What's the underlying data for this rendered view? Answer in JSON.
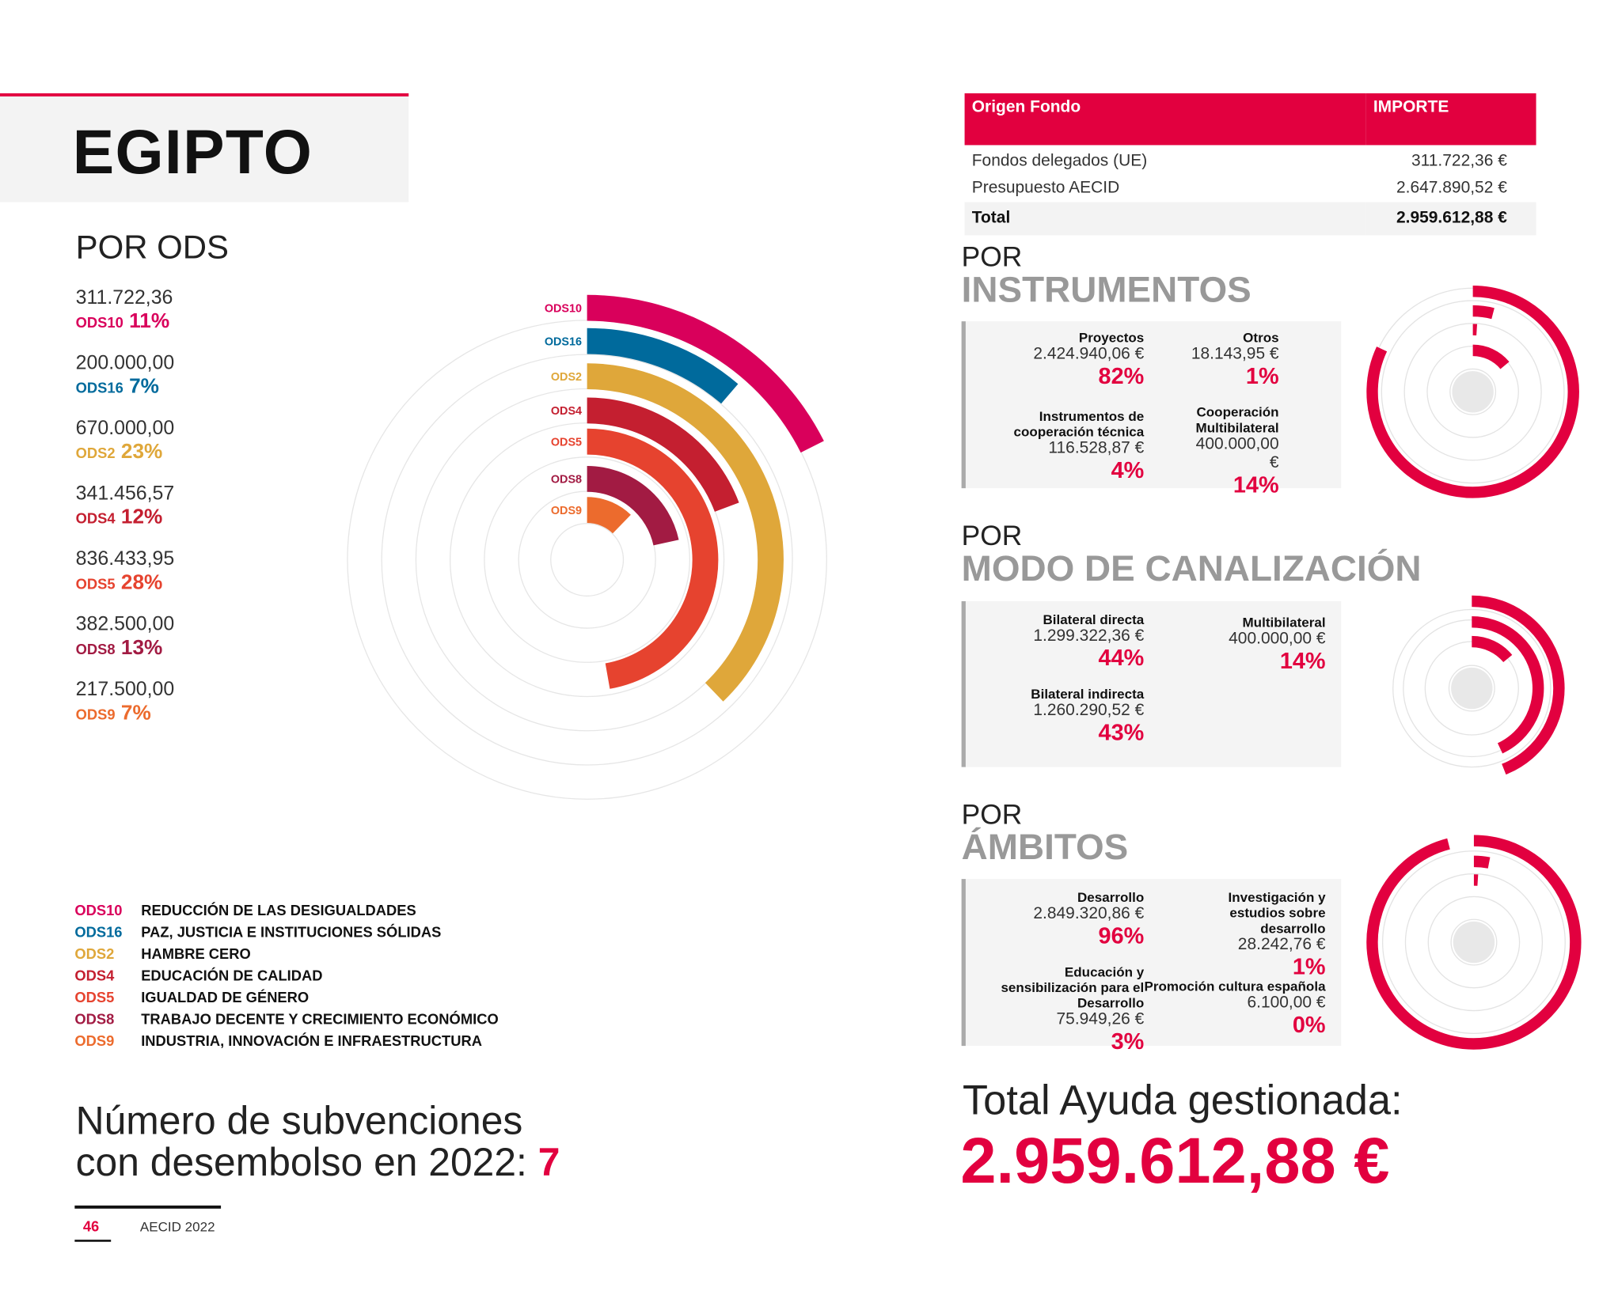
{
  "title": "EGIPTO",
  "por_ods": {
    "heading": "POR ODS",
    "items": [
      {
        "value": "311.722,36",
        "code": "ODS10",
        "pct": "11%",
        "amount": 311722.36,
        "color": "#d9005b"
      },
      {
        "value": "200.000,00",
        "code": "ODS16",
        "pct": "7%",
        "amount": 200000,
        "color": "#006a9c"
      },
      {
        "value": "670.000,00",
        "code": "ODS2",
        "pct": "23%",
        "amount": 670000,
        "color": "#dfa73a"
      },
      {
        "value": "341.456,57",
        "code": "ODS4",
        "pct": "12%",
        "amount": 341456.57,
        "color": "#c41f30"
      },
      {
        "value": "836.433,95",
        "code": "ODS5",
        "pct": "28%",
        "amount": 836433.95,
        "color": "#e6432f"
      },
      {
        "value": "382.500,00",
        "code": "ODS8",
        "pct": "13%",
        "amount": 382500,
        "color": "#a21b43"
      },
      {
        "value": "217.500,00",
        "code": "ODS9",
        "pct": "7%",
        "amount": 217500,
        "color": "#ec6b2d"
      }
    ]
  },
  "legend": [
    {
      "code": "ODS10",
      "desc": "REDUCCIÓN DE LAS DESIGUALDADES"
    },
    {
      "code": "ODS16",
      "desc": "PAZ, JUSTICIA E INSTITUCIONES SÓLIDAS"
    },
    {
      "code": "ODS2",
      "desc": "HAMBRE CERO"
    },
    {
      "code": "ODS4",
      "desc": "EDUCACIÓN DE CALIDAD"
    },
    {
      "code": "ODS5",
      "desc": "IGUALDAD DE GÉNERO"
    },
    {
      "code": "ODS8",
      "desc": "TRABAJO DECENTE Y CRECIMIENTO ECONÓMICO"
    },
    {
      "code": "ODS9",
      "desc": "INDUSTRIA, INNOVACIÓN E INFRAESTRUCTURA"
    }
  ],
  "subvenciones": {
    "line1": "Número de subvenciones",
    "line2": "con desembolso en 2022: ",
    "count": "7"
  },
  "footer": {
    "page": "46",
    "publication": "AECID 2022"
  },
  "fund_table": {
    "headers": [
      "Origen Fondo",
      "IMPORTE"
    ],
    "rows": [
      [
        "Fondos delegados (UE)",
        "311.722,36 €"
      ],
      [
        "Presupuesto AECID",
        "2.647.890,52 €"
      ]
    ],
    "total": [
      "Total",
      "2.959.612,88 €"
    ]
  },
  "instrumentos": {
    "por": "POR",
    "title": "INSTRUMENTOS",
    "items": [
      {
        "name": "Proyectos",
        "value": "2.424.940,06 €",
        "pct": "82%",
        "share": 82
      },
      {
        "name": "Otros",
        "value": "18.143,95 €",
        "pct": "1%",
        "share": 1
      },
      {
        "name": "Instrumentos de cooperación técnica",
        "value": "116.528,87 €",
        "pct": "4%",
        "share": 4
      },
      {
        "name": "Cooperación Multibilateral",
        "value": "400.000,00 €",
        "pct": "14%",
        "share": 14
      }
    ]
  },
  "modo": {
    "por": "POR",
    "title": "MODO DE CANALIZACIÓN",
    "items": [
      {
        "name": "Bilateral directa",
        "value": "1.299.322,36 €",
        "pct": "44%",
        "share": 44
      },
      {
        "name": "Multibilateral",
        "value": "400.000,00 €",
        "pct": "14%",
        "share": 14
      },
      {
        "name": "Bilateral indirecta",
        "value": "1.260.290,52 €",
        "pct": "43%",
        "share": 43
      }
    ]
  },
  "ambitos": {
    "por": "POR",
    "title": "ÁMBITOS",
    "items": [
      {
        "name": "Desarrollo",
        "value": "2.849.320,86 €",
        "pct": "96%",
        "share": 96
      },
      {
        "name": "Investigación y estudios sobre desarrollo",
        "value": "28.242,76 €",
        "pct": "1%",
        "share": 1
      },
      {
        "name": "Educación y sensibilización para el Desarrollo",
        "value": "75.949,26 €",
        "pct": "3%",
        "share": 3
      },
      {
        "name": "Promoción cultura española",
        "value": "6.100,00 €",
        "pct": "0%",
        "share": 0
      }
    ]
  },
  "total_ayuda": {
    "label": "Total Ayuda gestionada:",
    "value": "2.959.612,88 €"
  },
  "accent": "#e2003f"
}
